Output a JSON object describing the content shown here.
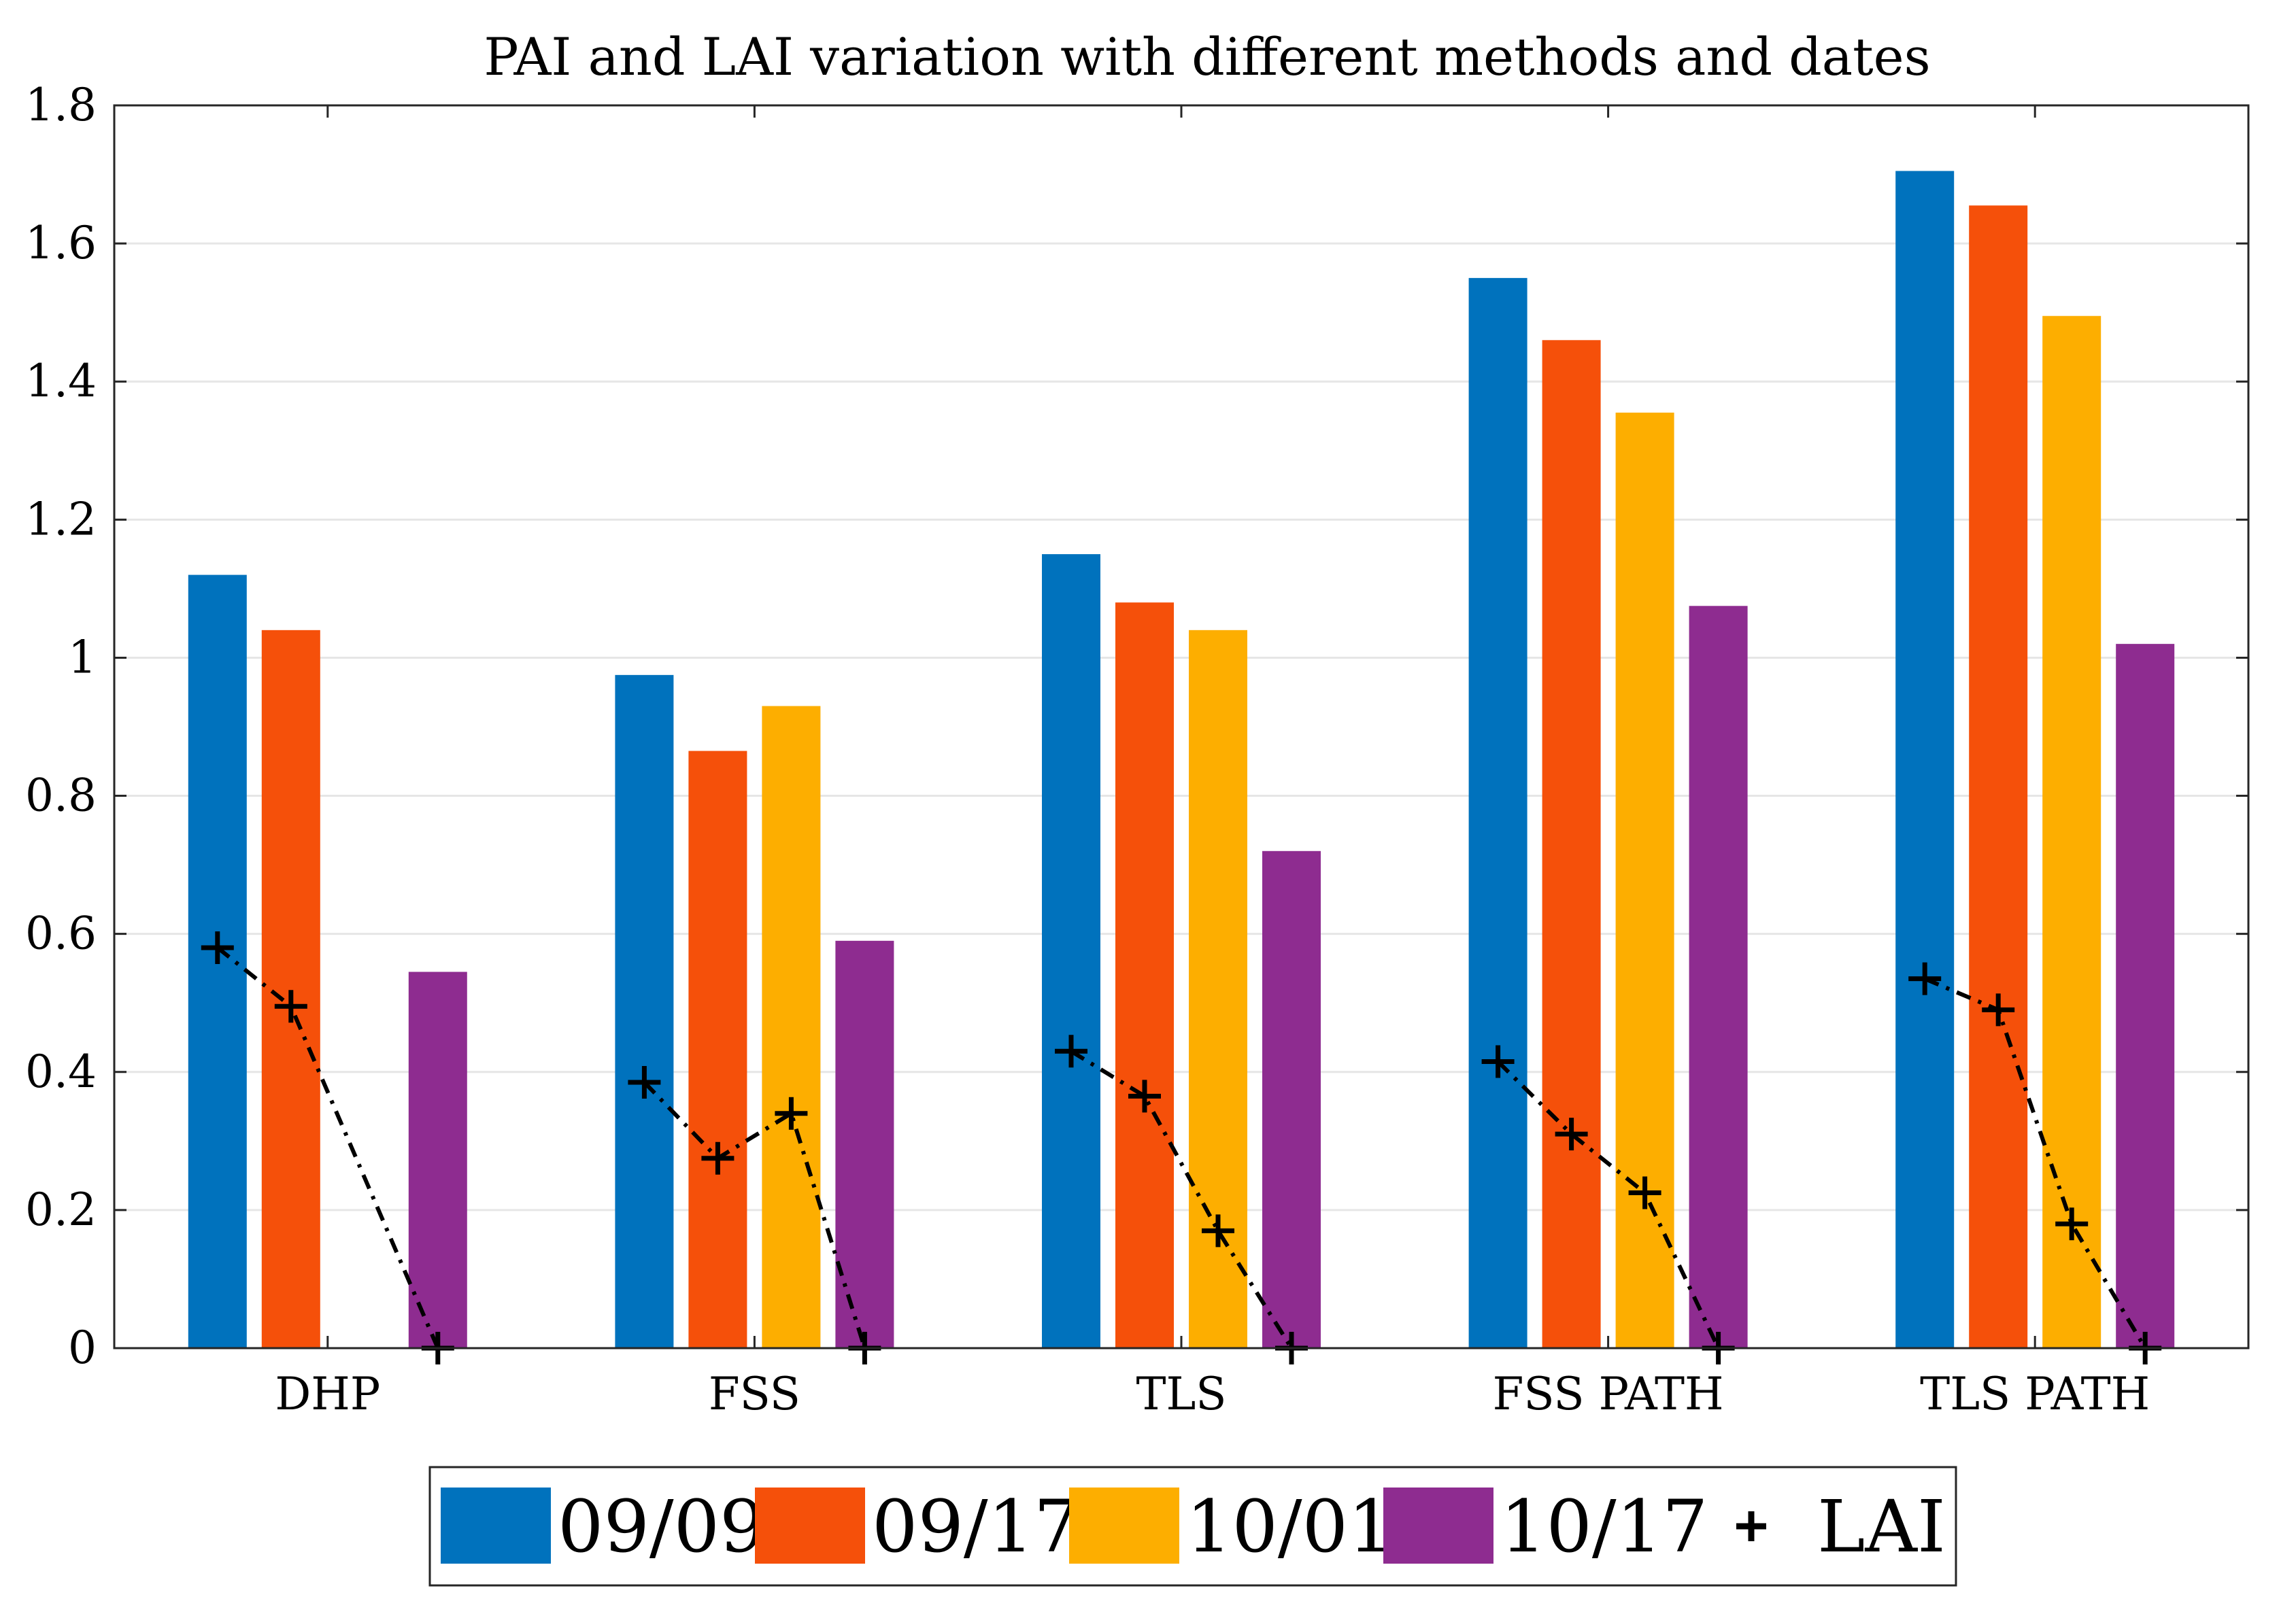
{
  "chart_data": {
    "type": "bar",
    "title": "PAI and LAI variation with different methods and dates",
    "xlabel": "",
    "ylabel": "",
    "ylim": [
      0,
      1.8
    ],
    "yticks": [
      0,
      0.2,
      0.4,
      0.6,
      0.8,
      1,
      1.2,
      1.4,
      1.6,
      1.8
    ],
    "ytick_labels": [
      "0",
      "0.2",
      "0.4",
      "0.6",
      "0.8",
      "1",
      "1.2",
      "1.4",
      "1.6",
      "1.8"
    ],
    "grid": true,
    "categories": [
      "DHP",
      "FSS",
      "TLS",
      "FSS PATH",
      "TLS PATH"
    ],
    "series": [
      {
        "name": "09/09",
        "color": "#0072BD",
        "values": [
          1.12,
          0.975,
          1.15,
          1.55,
          1.705
        ]
      },
      {
        "name": "09/17",
        "color": "#F5500A",
        "values": [
          1.04,
          0.865,
          1.08,
          1.46,
          1.655
        ]
      },
      {
        "name": "10/01",
        "color": "#FDAE00",
        "values": [
          0,
          0.93,
          1.04,
          1.355,
          1.495
        ]
      },
      {
        "name": "10/17",
        "color": "#8E2C90",
        "values": [
          0.545,
          0.59,
          0.72,
          1.075,
          1.02
        ]
      }
    ],
    "lai": {
      "name": "LAI",
      "marker": "+",
      "line_style": "dash-dot",
      "values": [
        [
          0.58,
          0.495,
          null,
          0
        ],
        [
          0.385,
          0.275,
          0.34,
          0
        ],
        [
          0.43,
          0.365,
          0.17,
          0
        ],
        [
          0.415,
          0.31,
          0.225,
          0
        ],
        [
          0.535,
          0.49,
          0.18,
          0
        ]
      ]
    },
    "legend": {
      "placement": "bottom",
      "entries": [
        "09/09",
        "09/17",
        "10/01",
        "10/17",
        "LAI"
      ]
    }
  }
}
